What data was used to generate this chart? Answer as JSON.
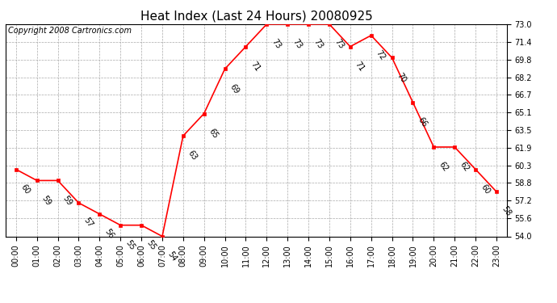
{
  "title": "Heat Index (Last 24 Hours) 20080925",
  "copyright": "Copyright 2008 Cartronics.com",
  "hours": [
    "00:00",
    "01:00",
    "02:00",
    "03:00",
    "04:00",
    "05:00",
    "06:00",
    "07:00",
    "08:00",
    "09:00",
    "10:00",
    "11:00",
    "12:00",
    "13:00",
    "14:00",
    "15:00",
    "16:00",
    "17:00",
    "18:00",
    "19:00",
    "20:00",
    "21:00",
    "22:00",
    "23:00"
  ],
  "values": [
    60,
    59,
    59,
    57,
    56,
    55,
    55,
    54,
    63,
    65,
    69,
    71,
    73,
    73,
    73,
    73,
    71,
    72,
    70,
    66,
    62,
    62,
    60,
    58
  ],
  "ylim_min": 54.0,
  "ylim_max": 73.0,
  "yticks": [
    54.0,
    55.6,
    57.2,
    58.8,
    60.3,
    61.9,
    63.5,
    65.1,
    66.7,
    68.2,
    69.8,
    71.4,
    73.0
  ],
  "ytick_labels": [
    "54.0",
    "55.6",
    "57.2",
    "58.8",
    "60.3",
    "61.9",
    "63.5",
    "65.1",
    "66.7",
    "68.2",
    "69.8",
    "71.4",
    "73.0"
  ],
  "line_color": "red",
  "marker_color": "red",
  "grid_color": "#aaaaaa",
  "bg_color": "white",
  "title_fontsize": 11,
  "tick_fontsize": 7,
  "copyright_fontsize": 7,
  "annotation_fontsize": 7,
  "annotation_rotation": -55
}
